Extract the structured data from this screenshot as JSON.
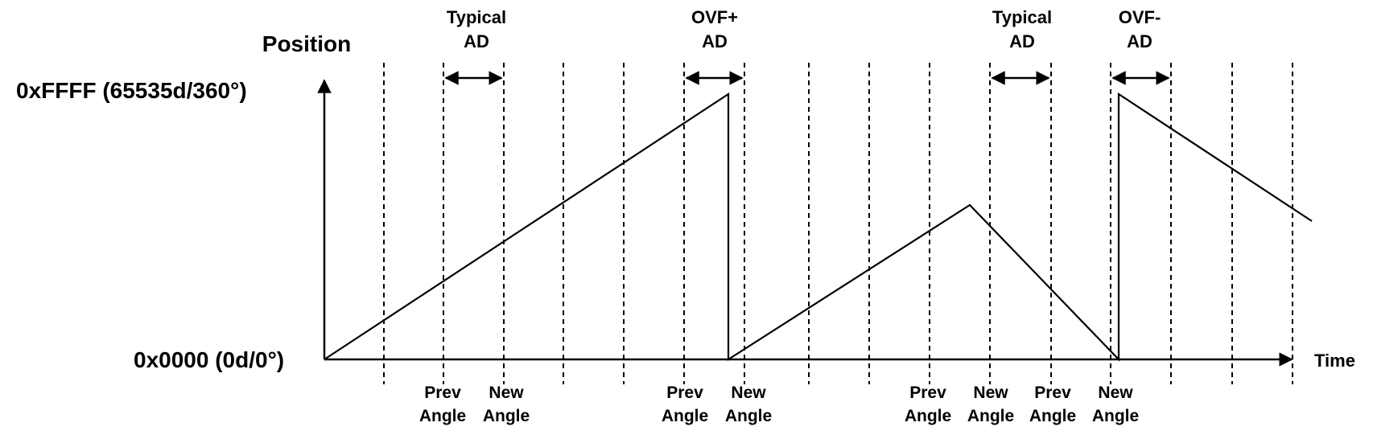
{
  "axes": {
    "y_title": "Position",
    "y_max_label": "0xFFFF (65535d/360°)",
    "y_min_label": "0x0000 (0d/0°)",
    "x_title": "Time"
  },
  "ad_windows": [
    {
      "line1": "Typical",
      "line2": "AD"
    },
    {
      "line1": "OVF+",
      "line2": "AD"
    },
    {
      "line1": "Typical",
      "line2": "AD"
    },
    {
      "line1": "OVF-",
      "line2": "AD"
    }
  ],
  "angle_labels": [
    {
      "line1": "Prev",
      "line2": "Angle"
    },
    {
      "line1": "New",
      "line2": "Angle"
    },
    {
      "line1": "Prev",
      "line2": "Angle"
    },
    {
      "line1": "New",
      "line2": "Angle"
    },
    {
      "line1": "Prev",
      "line2": "Angle"
    },
    {
      "line1": "New",
      "line2": "Angle"
    },
    {
      "line1": "Prev",
      "line2": "Angle"
    },
    {
      "line1": "New",
      "line2": "Angle"
    }
  ]
}
